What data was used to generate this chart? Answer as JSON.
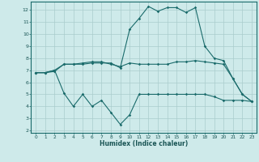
{
  "xlabel": "Humidex (Indice chaleur)",
  "background_color": "#ceeaea",
  "grid_color": "#aacccc",
  "line_color": "#1a6b6b",
  "xlim": [
    -0.5,
    23.5
  ],
  "ylim": [
    1.8,
    12.7
  ],
  "yticks": [
    2,
    3,
    4,
    5,
    6,
    7,
    8,
    9,
    10,
    11,
    12
  ],
  "xticks": [
    0,
    1,
    2,
    3,
    4,
    5,
    6,
    7,
    8,
    9,
    10,
    11,
    12,
    13,
    14,
    15,
    16,
    17,
    18,
    19,
    20,
    21,
    22,
    23
  ],
  "line1_x": [
    0,
    1,
    2,
    3,
    4,
    5,
    6,
    7,
    8,
    9,
    10,
    11,
    12,
    13,
    14,
    15,
    16,
    17,
    18,
    19,
    20,
    21,
    22,
    23
  ],
  "line1_y": [
    6.8,
    6.8,
    6.9,
    7.5,
    7.5,
    7.5,
    7.6,
    7.6,
    7.6,
    7.2,
    10.4,
    11.3,
    12.3,
    11.9,
    12.2,
    12.2,
    11.8,
    12.2,
    9.0,
    8.0,
    7.8,
    6.3,
    5.0,
    4.4
  ],
  "line2_x": [
    0,
    1,
    2,
    3,
    4,
    5,
    6,
    7,
    8,
    9,
    10,
    11,
    12,
    13,
    14,
    15,
    16,
    17,
    18,
    19,
    20,
    21,
    22,
    23
  ],
  "line2_y": [
    6.8,
    6.8,
    7.0,
    7.5,
    7.5,
    7.6,
    7.7,
    7.7,
    7.5,
    7.3,
    7.6,
    7.5,
    7.5,
    7.5,
    7.5,
    7.7,
    7.7,
    7.8,
    7.7,
    7.6,
    7.5,
    6.3,
    5.0,
    4.4
  ],
  "line3_x": [
    0,
    1,
    2,
    3,
    4,
    5,
    6,
    7,
    8,
    9,
    10,
    11,
    12,
    13,
    14,
    15,
    16,
    17,
    18,
    19,
    20,
    21,
    22,
    23
  ],
  "line3_y": [
    6.8,
    6.8,
    7.0,
    5.1,
    4.0,
    5.0,
    4.0,
    4.5,
    3.5,
    2.5,
    3.3,
    5.0,
    5.0,
    5.0,
    5.0,
    5.0,
    5.0,
    5.0,
    5.0,
    4.8,
    4.5,
    4.5,
    4.5,
    4.4
  ]
}
